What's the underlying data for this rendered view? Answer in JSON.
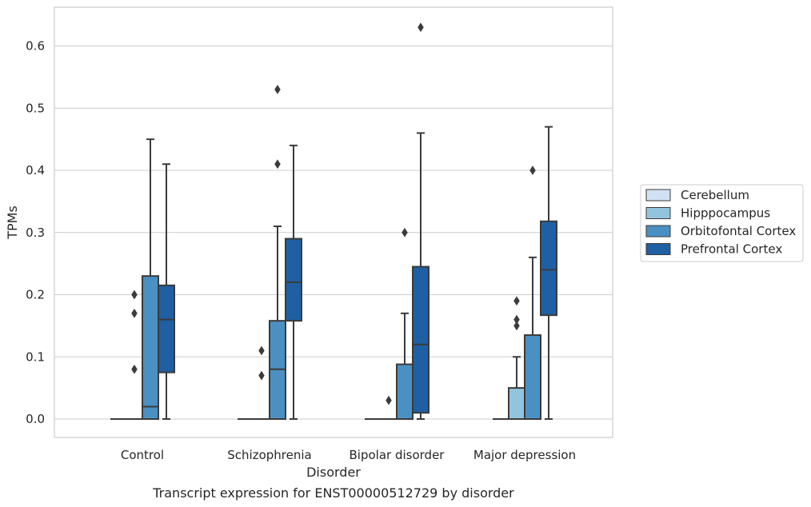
{
  "chart_data": {
    "type": "box",
    "title": "",
    "caption": "Transcript expression for ENST00000512729 by disorder",
    "xlabel": "Disorder",
    "ylabel": "TPMs",
    "ylim": [
      -0.03,
      0.66
    ],
    "yticks": [
      "0.0",
      "0.1",
      "0.2",
      "0.3",
      "0.4",
      "0.5",
      "0.6"
    ],
    "ytick_values": [
      0,
      0.1,
      0.2,
      0.3,
      0.4,
      0.5,
      0.6
    ],
    "grid": "horizontal",
    "legend_position": "right",
    "categories": [
      "Control",
      "Schizophrenia",
      "Bipolar disorder",
      "Major depression"
    ],
    "series": [
      {
        "name": "Cerebellum",
        "color": "#cfe1f2",
        "boxes": [
          {
            "q1": 0,
            "median": 0,
            "q3": 0,
            "whisker_low": 0,
            "whisker_high": 0,
            "outliers": []
          },
          {
            "q1": 0,
            "median": 0,
            "q3": 0,
            "whisker_low": 0,
            "whisker_high": 0,
            "outliers": []
          },
          {
            "q1": 0,
            "median": 0,
            "q3": 0,
            "whisker_low": 0,
            "whisker_high": 0,
            "outliers": []
          },
          {
            "q1": 0,
            "median": 0,
            "q3": 0,
            "whisker_low": 0,
            "whisker_high": 0,
            "outliers": []
          }
        ]
      },
      {
        "name": "Hipppocampus",
        "color": "#93c4de",
        "boxes": [
          {
            "q1": 0,
            "median": 0,
            "q3": 0,
            "whisker_low": 0,
            "whisker_high": 0,
            "outliers": [
              0.08,
              0.17,
              0.2
            ]
          },
          {
            "q1": 0,
            "median": 0,
            "q3": 0,
            "whisker_low": 0,
            "whisker_high": 0,
            "outliers": [
              0.07,
              0.11
            ]
          },
          {
            "q1": 0,
            "median": 0,
            "q3": 0,
            "whisker_low": 0,
            "whisker_high": 0,
            "outliers": [
              0.03
            ]
          },
          {
            "q1": 0,
            "median": 0,
            "q3": 0.05,
            "whisker_low": 0,
            "whisker_high": 0.1,
            "outliers": [
              0.15,
              0.16,
              0.19
            ]
          }
        ]
      },
      {
        "name": "Orbitofontal Cortex",
        "color": "#4a90c2",
        "boxes": [
          {
            "q1": 0,
            "median": 0.02,
            "q3": 0.23,
            "whisker_low": 0,
            "whisker_high": 0.45,
            "outliers": []
          },
          {
            "q1": 0,
            "median": 0.08,
            "q3": 0.158,
            "whisker_low": 0,
            "whisker_high": 0.31,
            "outliers": [
              0.41,
              0.53
            ]
          },
          {
            "q1": 0,
            "median": 0,
            "q3": 0.088,
            "whisker_low": 0,
            "whisker_high": 0.17,
            "outliers": [
              0.3
            ]
          },
          {
            "q1": 0,
            "median": 0,
            "q3": 0.135,
            "whisker_low": 0,
            "whisker_high": 0.26,
            "outliers": [
              0.4
            ]
          }
        ]
      },
      {
        "name": "Prefrontal Cortex",
        "color": "#1f5fa3",
        "boxes": [
          {
            "q1": 0.075,
            "median": 0.16,
            "q3": 0.215,
            "whisker_low": 0,
            "whisker_high": 0.41,
            "outliers": []
          },
          {
            "q1": 0.158,
            "median": 0.22,
            "q3": 0.29,
            "whisker_low": 0,
            "whisker_high": 0.44,
            "outliers": []
          },
          {
            "q1": 0.01,
            "median": 0.12,
            "q3": 0.245,
            "whisker_low": 0,
            "whisker_high": 0.46,
            "outliers": [
              0.63
            ]
          },
          {
            "q1": 0.167,
            "median": 0.24,
            "q3": 0.318,
            "whisker_low": 0,
            "whisker_high": 0.47,
            "outliers": []
          }
        ]
      }
    ]
  }
}
